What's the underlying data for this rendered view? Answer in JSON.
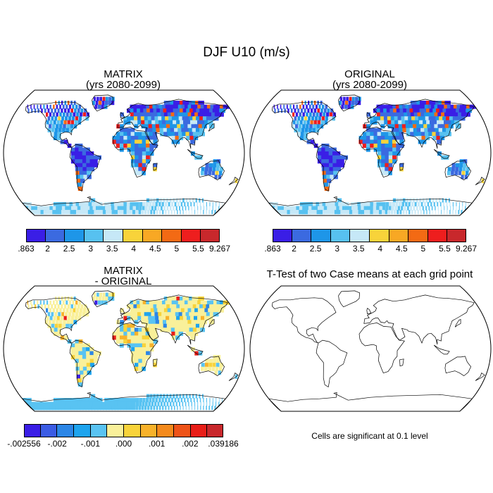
{
  "figure": {
    "title": "DJF U10 (m/s)"
  },
  "panels": {
    "top_left": {
      "title_line1": "MATRIX",
      "title_line2": "(yrs 2080-2099)"
    },
    "top_right": {
      "title_line1": "ORIGINAL",
      "title_line2": "(yrs 2080-2099)"
    },
    "bottom_left": {
      "title_line1": "MATRIX",
      "title_line2": "- ORIGINAL"
    },
    "bottom_right": {
      "title": "T-Test of two Case means at each grid point",
      "note": "Cells are significant at 0.1 level"
    }
  },
  "colorbars": {
    "field": {
      "colors": [
        "#3a1ee6",
        "#3b6ae0",
        "#1e96e8",
        "#57c1f0",
        "#c6e8f7",
        "#f8d33a",
        "#f8a824",
        "#f36a14",
        "#ee1e1e",
        "#c8282c"
      ],
      "labels": [
        ".863",
        "2",
        "2.5",
        "3",
        "3.5",
        "4",
        "4.5",
        "5",
        "5.5",
        "9.267"
      ]
    },
    "diff": {
      "colors": [
        "#3a1ee6",
        "#3b5ce4",
        "#2c86e6",
        "#1ea4ee",
        "#59c3f2",
        "#f9f09a",
        "#f8d33a",
        "#f8b22a",
        "#f48a1c",
        "#ee5318",
        "#e81e18",
        "#c8282c"
      ],
      "labels": [
        "-.002556",
        "-.002",
        "-.001",
        ".000",
        ".001",
        ".002",
        ".039186"
      ]
    }
  },
  "chart_data": {
    "type": "heatmap",
    "projection": "Robinson, global",
    "variable": "U10",
    "season": "DJF",
    "units": "m/s",
    "period": "2080-2099",
    "panels": [
      {
        "name": "MATRIX",
        "color_levels": [
          0.863,
          2,
          2.5,
          3,
          3.5,
          4,
          4.5,
          5,
          5.5,
          9.267
        ]
      },
      {
        "name": "ORIGINAL",
        "color_levels": [
          0.863,
          2,
          2.5,
          3,
          3.5,
          4,
          4.5,
          5,
          5.5,
          9.267
        ]
      },
      {
        "name": "MATRIX - ORIGINAL",
        "color_levels": [
          -0.002556,
          -0.002,
          -0.001,
          0.0,
          0.001,
          0.002,
          0.039186
        ]
      },
      {
        "name": "T-Test",
        "significant_cells": 0
      }
    ]
  }
}
